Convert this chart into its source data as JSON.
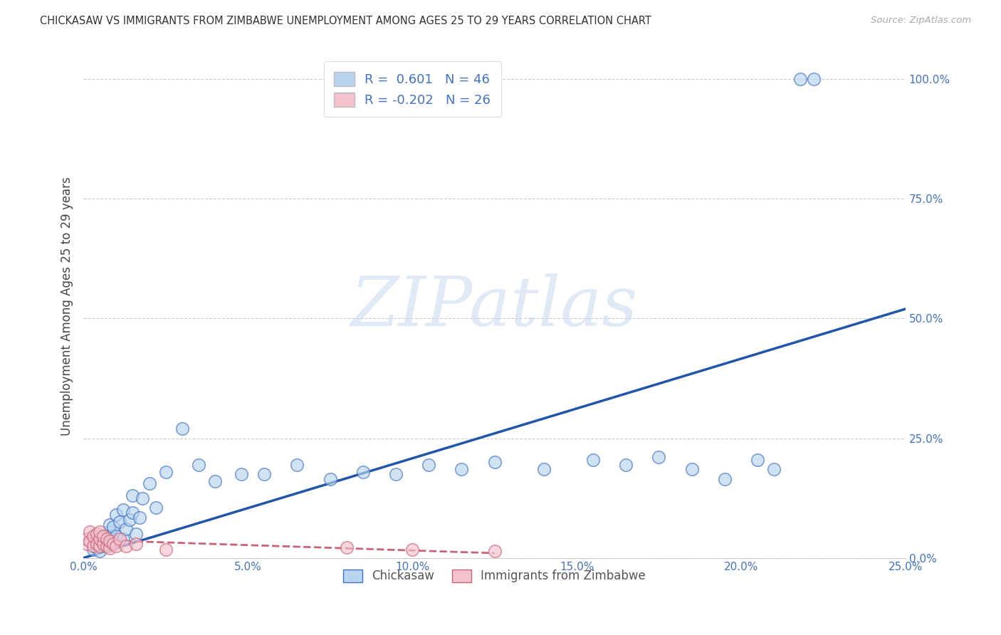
{
  "title": "CHICKASAW VS IMMIGRANTS FROM ZIMBABWE UNEMPLOYMENT AMONG AGES 25 TO 29 YEARS CORRELATION CHART",
  "source": "Source: ZipAtlas.com",
  "ylabel": "Unemployment Among Ages 25 to 29 years",
  "xlim": [
    0.0,
    0.25
  ],
  "ylim": [
    0.0,
    1.05
  ],
  "yticks": [
    0.0,
    0.25,
    0.5,
    0.75,
    1.0
  ],
  "ytick_labels": [
    "0.0%",
    "25.0%",
    "50.0%",
    "75.0%",
    "100.0%"
  ],
  "xticks": [
    0.0,
    0.05,
    0.1,
    0.15,
    0.2,
    0.25
  ],
  "xtick_labels": [
    "0.0%",
    "5.0%",
    "10.0%",
    "15.0%",
    "20.0%",
    "25.0%"
  ],
  "blue_fill": "#b8d4ee",
  "blue_edge": "#4472c4",
  "blue_line": "#2155a8",
  "pink_fill": "#f4c2ce",
  "pink_edge": "#c8637a",
  "pink_line": "#c8637a",
  "R_blue": 0.601,
  "N_blue": 46,
  "R_pink": -0.202,
  "N_pink": 26,
  "legend_label_blue": "Chickasaw",
  "legend_label_pink": "Immigrants from Zimbabwe",
  "watermark": "ZIPatlas",
  "label_color": "#4472c4",
  "blue_x": [
    0.003,
    0.004,
    0.005,
    0.006,
    0.007,
    0.008,
    0.008,
    0.009,
    0.009,
    0.01,
    0.01,
    0.011,
    0.012,
    0.012,
    0.013,
    0.014,
    0.015,
    0.015,
    0.016,
    0.017,
    0.018,
    0.02,
    0.022,
    0.025,
    0.03,
    0.035,
    0.04,
    0.048,
    0.055,
    0.065,
    0.075,
    0.085,
    0.095,
    0.105,
    0.115,
    0.125,
    0.14,
    0.155,
    0.165,
    0.175,
    0.185,
    0.195,
    0.205,
    0.21,
    0.218,
    0.222
  ],
  "blue_y": [
    0.018,
    0.022,
    0.015,
    0.045,
    0.025,
    0.055,
    0.07,
    0.035,
    0.065,
    0.045,
    0.09,
    0.075,
    0.04,
    0.1,
    0.06,
    0.08,
    0.095,
    0.13,
    0.05,
    0.085,
    0.125,
    0.155,
    0.105,
    0.18,
    0.27,
    0.195,
    0.16,
    0.175,
    0.175,
    0.195,
    0.165,
    0.18,
    0.175,
    0.195,
    0.185,
    0.2,
    0.185,
    0.205,
    0.195,
    0.21,
    0.185,
    0.165,
    0.205,
    0.185,
    1.0,
    1.0
  ],
  "pink_x": [
    0.001,
    0.001,
    0.002,
    0.002,
    0.003,
    0.003,
    0.004,
    0.004,
    0.005,
    0.005,
    0.005,
    0.006,
    0.006,
    0.007,
    0.007,
    0.008,
    0.008,
    0.009,
    0.01,
    0.011,
    0.013,
    0.016,
    0.025,
    0.08,
    0.1,
    0.125
  ],
  "pink_y": [
    0.03,
    0.04,
    0.035,
    0.055,
    0.025,
    0.045,
    0.03,
    0.05,
    0.025,
    0.04,
    0.055,
    0.03,
    0.045,
    0.025,
    0.04,
    0.02,
    0.035,
    0.03,
    0.025,
    0.04,
    0.025,
    0.03,
    0.018,
    0.022,
    0.018,
    0.015
  ],
  "blue_line_x0": 0.0,
  "blue_line_y0": 0.0,
  "blue_line_x1": 0.25,
  "blue_line_y1": 0.52,
  "pink_line_x0": 0.0,
  "pink_line_y0": 0.038,
  "pink_line_x1": 0.125,
  "pink_line_y1": 0.01
}
